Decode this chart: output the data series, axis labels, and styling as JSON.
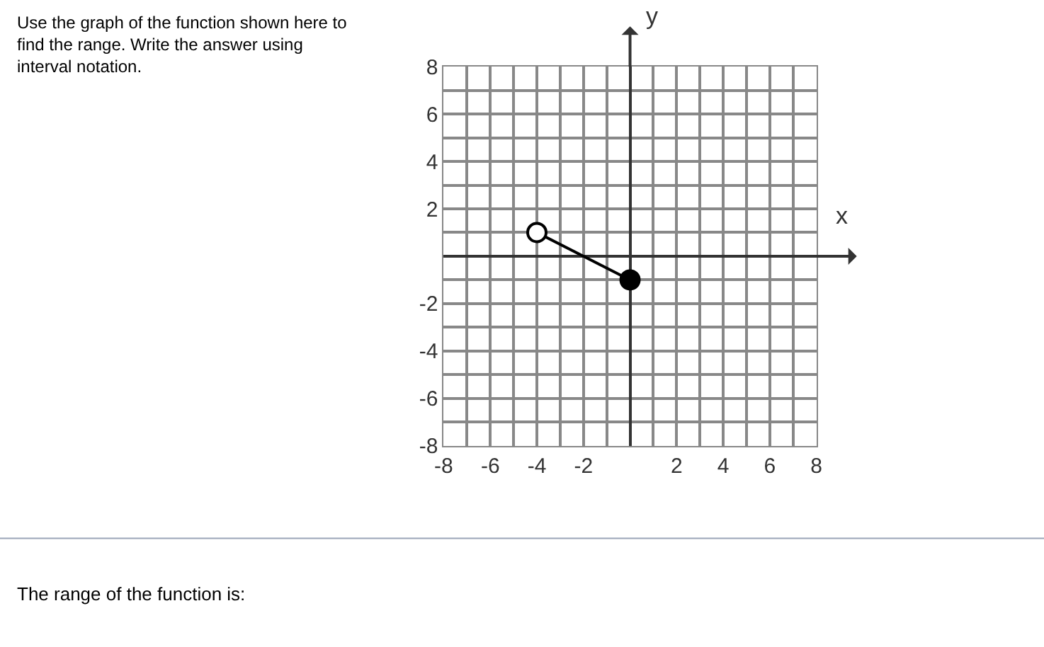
{
  "chart_data": {
    "type": "line",
    "title": "Use the graph of the function shown here to find the range. Write the answer using interval notation.",
    "xlabel": "x",
    "ylabel": "y",
    "annotations": [
      "The range of the function is:"
    ],
    "x": [
      -4,
      0
    ],
    "series": [
      {
        "color": "#000000",
        "values": [
          1,
          -1
        ],
        "colors": [
          "#ffffff",
          "#000000"
        ]
      }
    ],
    "marker": "circle",
    "xlim": [
      -8,
      8
    ],
    "ylim": [
      -8,
      8
    ],
    "xticks": [
      -8,
      {
        "value": -7,
        "label": null
      },
      -6,
      {
        "value": -5,
        "label": null
      },
      -4,
      {
        "value": -3,
        "label": null
      },
      -2,
      {
        "value": -1,
        "label": null
      },
      {
        "value": 0,
        "label": null
      },
      {
        "value": 1,
        "label": null
      },
      2,
      {
        "value": 3,
        "label": null
      },
      4,
      {
        "value": 5,
        "label": null
      },
      6,
      {
        "value": 7,
        "label": null
      },
      8
    ],
    "yticks": [
      -8,
      {
        "value": -7,
        "label": null
      },
      -6,
      {
        "value": -5,
        "label": null
      },
      -4,
      {
        "value": -3,
        "label": null
      },
      -2,
      {
        "value": -1,
        "label": null
      },
      {
        "value": 0,
        "label": null
      },
      {
        "value": 1,
        "label": null
      },
      2,
      {
        "value": 3,
        "label": null
      },
      4,
      {
        "value": 5,
        "label": null
      },
      6,
      {
        "value": 7,
        "label": null
      },
      8
    ],
    "grid": true
  }
}
